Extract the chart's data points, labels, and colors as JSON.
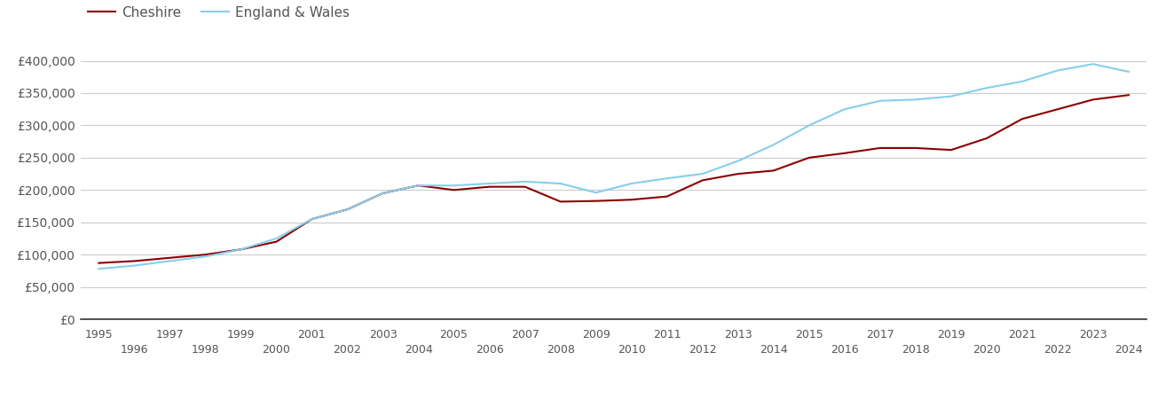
{
  "cheshire_years": [
    1995,
    1996,
    1997,
    1998,
    1999,
    2000,
    2001,
    2002,
    2003,
    2004,
    2005,
    2006,
    2007,
    2008,
    2009,
    2010,
    2011,
    2012,
    2013,
    2014,
    2015,
    2016,
    2017,
    2018,
    2019,
    2020,
    2021,
    2022,
    2023,
    2024
  ],
  "cheshire_values": [
    87000,
    90000,
    95000,
    100000,
    108000,
    120000,
    155000,
    170000,
    195000,
    207000,
    200000,
    205000,
    205000,
    182000,
    183000,
    185000,
    190000,
    215000,
    225000,
    230000,
    250000,
    257000,
    265000,
    265000,
    262000,
    280000,
    310000,
    325000,
    340000,
    347000
  ],
  "ew_years": [
    1995,
    1996,
    1997,
    1998,
    1999,
    2000,
    2001,
    2002,
    2003,
    2004,
    2005,
    2006,
    2007,
    2008,
    2009,
    2010,
    2011,
    2012,
    2013,
    2014,
    2015,
    2016,
    2017,
    2018,
    2019,
    2020,
    2021,
    2022,
    2023,
    2024
  ],
  "ew_values": [
    78000,
    83000,
    90000,
    97000,
    108000,
    125000,
    155000,
    170000,
    195000,
    207000,
    207000,
    210000,
    213000,
    210000,
    196000,
    210000,
    218000,
    225000,
    245000,
    270000,
    300000,
    325000,
    338000,
    340000,
    345000,
    358000,
    368000,
    385000,
    395000,
    383000
  ],
  "cheshire_color": "#8B0000",
  "ew_color": "#87CEEB",
  "legend_labels": [
    "Cheshire",
    "England & Wales"
  ],
  "yticks": [
    0,
    50000,
    100000,
    150000,
    200000,
    250000,
    300000,
    350000,
    400000
  ],
  "ytick_labels": [
    "£0",
    "£50,000",
    "£100,000",
    "£150,000",
    "£200,000",
    "£250,000",
    "£300,000",
    "£350,000",
    "£400,000"
  ],
  "ylim": [
    0,
    420000
  ],
  "xlim_min": 1994.5,
  "xlim_max": 2024.5,
  "xticks_top": [
    1995,
    1997,
    1999,
    2001,
    2003,
    2005,
    2007,
    2009,
    2011,
    2013,
    2015,
    2017,
    2019,
    2021,
    2023
  ],
  "xticks_bottom": [
    1996,
    1998,
    2000,
    2002,
    2004,
    2006,
    2008,
    2010,
    2012,
    2014,
    2016,
    2018,
    2020,
    2022,
    2024
  ],
  "grid_color": "#cccccc",
  "bg_color": "#ffffff",
  "line_width": 1.5
}
